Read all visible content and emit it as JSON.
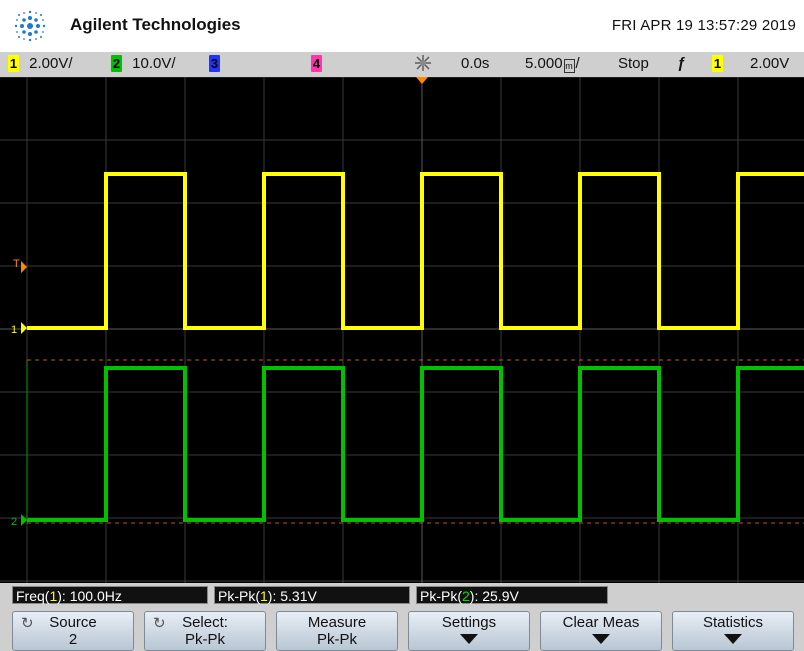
{
  "header": {
    "brand": "Agilent Technologies",
    "datetime": "FRI APR 19 13:57:29 2019"
  },
  "status": {
    "ch1_num": "1",
    "ch1_scale": "2.00V/",
    "ch2_num": "2",
    "ch2_scale": "10.0V/",
    "ch3_num": "3",
    "ch4_num": "4",
    "time_delay": "0.0s",
    "time_scale": "5.000",
    "time_scale_suffix": "/",
    "run_state": "Stop",
    "trigger_edge": "ƒ",
    "trigger_source": "1",
    "trigger_level": "2.00V"
  },
  "markers": {
    "trigger": "T",
    "ch1": "1",
    "ch2": "2"
  },
  "measurements": {
    "freq_prefix": "Freq(",
    "freq_src": "1",
    "freq_suffix": "): 100.0Hz",
    "pk1_prefix": "Pk-Pk(",
    "pk1_src": "1",
    "pk1_suffix": "): 5.31V",
    "pk2_prefix": "Pk-Pk(",
    "pk2_src": "2",
    "pk2_suffix": "): 25.9V"
  },
  "softkeys": {
    "source_label": "Source",
    "source_value": "2",
    "select_label": "Select:",
    "select_value": "Pk-Pk",
    "measure_label": "Measure",
    "measure_value": "Pk-Pk",
    "settings_label": "Settings",
    "clear_label": "Clear Meas",
    "stats_label": "Statistics"
  },
  "colors": {
    "ch1": "#ffff00",
    "ch2": "#00c000",
    "ch3": "#2233ff",
    "ch4": "#ff33aa",
    "screen_bg": "#000000",
    "trigger_marker": "#ff8800"
  }
}
